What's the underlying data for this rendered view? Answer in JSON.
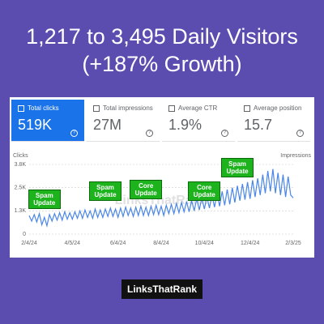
{
  "header": {
    "title": "1,217 to 3,495 Daily Visitors (+187% Growth)"
  },
  "cards": [
    {
      "label": "Total clicks",
      "value": "519K"
    },
    {
      "label": "Total impressions",
      "value": "27M"
    },
    {
      "label": "Average CTR",
      "value": "1.9%"
    },
    {
      "label": "Average position",
      "value": "15.7"
    }
  ],
  "chart_data": {
    "type": "line",
    "y_label": "Clicks",
    "y2_label": "Impressions",
    "watermark": "LinksThatRank",
    "categories": [
      "2/4/24",
      null,
      null,
      null,
      null,
      null,
      null,
      null,
      null,
      null,
      null,
      null,
      null,
      null,
      null,
      null,
      null,
      "4/5/24",
      null,
      null,
      null,
      null,
      null,
      null,
      null,
      null,
      null,
      null,
      null,
      null,
      null,
      null,
      null,
      null,
      null,
      "6/4/24",
      null,
      null,
      null,
      null,
      null,
      null,
      null,
      null,
      null,
      null,
      null,
      null,
      null,
      null,
      null,
      null,
      "8/4/24",
      null,
      null,
      null,
      null,
      null,
      null,
      null,
      null,
      null,
      null,
      null,
      null,
      null,
      null,
      null,
      null,
      "10/4/24",
      null,
      null,
      null,
      null,
      null,
      null,
      null,
      null,
      null,
      null,
      null,
      null,
      null,
      null,
      null,
      null,
      null,
      "12/4/24",
      null,
      null,
      null,
      null,
      null,
      null,
      null,
      null,
      null,
      null,
      null,
      null,
      null,
      null,
      null,
      null,
      "2/3/25"
    ],
    "series": [
      {
        "name": "Clicks",
        "color": "#4a86e8",
        "values": [
          1000,
          700,
          1050,
          650,
          1100,
          500,
          900,
          450,
          1050,
          700,
          1100,
          750,
          1150,
          750,
          1200,
          800,
          1150,
          800,
          1200,
          850,
          1250,
          850,
          1300,
          900,
          1250,
          850,
          1350,
          900,
          1300,
          900,
          1350,
          950,
          1400,
          950,
          1350,
          900,
          1400,
          950,
          1450,
          1000,
          1400,
          950,
          1450,
          1000,
          1500,
          1000,
          1450,
          1000,
          1500,
          1050,
          1550,
          1050,
          1500,
          1000,
          1550,
          1100,
          1600,
          1100,
          1650,
          1150,
          1700,
          1200,
          1750,
          1200,
          1800,
          1250,
          1900,
          1300,
          1950,
          1350,
          2000,
          1400,
          2100,
          1450,
          2200,
          1500,
          2300,
          1550,
          2400,
          1600,
          2500,
          1700,
          2600,
          1800,
          2700,
          1850,
          2800,
          1900,
          2900,
          2000,
          3000,
          2100,
          3200,
          2200,
          3400,
          2300,
          3500,
          2200,
          3300,
          2100,
          3200,
          2000,
          3100,
          2100,
          1950
        ]
      }
    ],
    "ylim": [
      0,
      3750
    ],
    "yticks": [
      0,
      {
        "value": 1250,
        "label": "1.3K"
      },
      {
        "value": 2500,
        "label": "2.5K"
      },
      {
        "value": 3750,
        "label": "3.8K"
      }
    ],
    "grid": true,
    "annotations": [
      {
        "text": "Spam Update",
        "index": 6
      },
      {
        "text": "Spam Update",
        "index": 30
      },
      {
        "text": "Core Update",
        "index": 46
      },
      {
        "text": "Core Update",
        "index": 69
      },
      {
        "text": "Spam Update",
        "index": 82
      }
    ]
  },
  "footer": {
    "logo": "LinksThatRank"
  }
}
